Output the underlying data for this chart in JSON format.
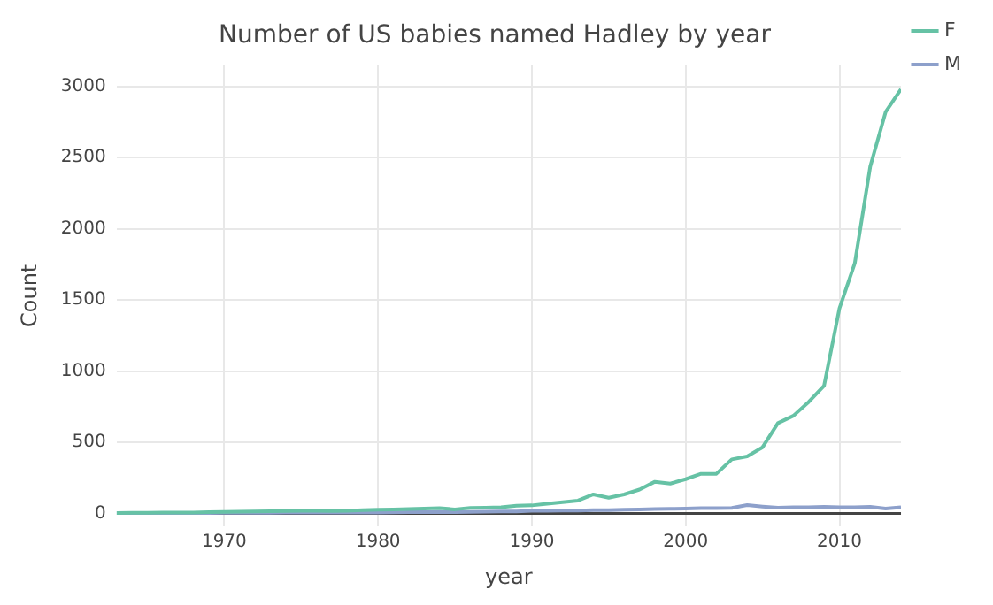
{
  "chart_data": {
    "type": "line",
    "title": "Number of US babies named Hadley by year",
    "xlabel": "year",
    "ylabel": "Count",
    "x": [
      1963,
      1964,
      1965,
      1966,
      1967,
      1968,
      1969,
      1970,
      1971,
      1972,
      1973,
      1974,
      1975,
      1976,
      1977,
      1978,
      1979,
      1980,
      1981,
      1982,
      1983,
      1984,
      1985,
      1986,
      1987,
      1988,
      1989,
      1990,
      1991,
      1992,
      1993,
      1994,
      1995,
      1996,
      1997,
      1998,
      1999,
      2000,
      2001,
      2002,
      2003,
      2004,
      2005,
      2006,
      2007,
      2008,
      2009,
      2010,
      2011,
      2012,
      2013,
      2014
    ],
    "series": [
      {
        "name": "F",
        "color": "#66c2a5",
        "values": [
          5,
          6,
          6,
          7,
          7,
          8,
          10,
          12,
          14,
          16,
          17,
          18,
          20,
          20,
          18,
          20,
          24,
          28,
          30,
          32,
          35,
          38,
          30,
          40,
          42,
          45,
          55,
          58,
          70,
          80,
          92,
          135,
          112,
          135,
          169,
          224,
          211,
          242,
          280,
          280,
          381,
          402,
          466,
          636,
          687,
          784,
          898,
          1441,
          1760,
          2437,
          2820,
          2980
        ]
      },
      {
        "name": "M",
        "color": "#8da0cb",
        "values": [
          5,
          5,
          5,
          5,
          5,
          5,
          5,
          6,
          6,
          6,
          6,
          7,
          7,
          7,
          7,
          8,
          8,
          8,
          9,
          10,
          10,
          12,
          10,
          12,
          14,
          15,
          16,
          20,
          20,
          22,
          22,
          25,
          25,
          28,
          30,
          32,
          34,
          35,
          38,
          38,
          40,
          60,
          50,
          42,
          45,
          45,
          48,
          45,
          45,
          48,
          35,
          45
        ]
      }
    ],
    "xlim": [
      1963,
      2014
    ],
    "ylim": [
      -90,
      3150
    ],
    "xticks": [
      1970,
      1980,
      1990,
      2000,
      2010
    ],
    "yticks": [
      0,
      500,
      1000,
      1500,
      2000,
      2500,
      3000
    ],
    "grid": true,
    "legend": "top right",
    "marker": "none",
    "line_style": "solid"
  }
}
